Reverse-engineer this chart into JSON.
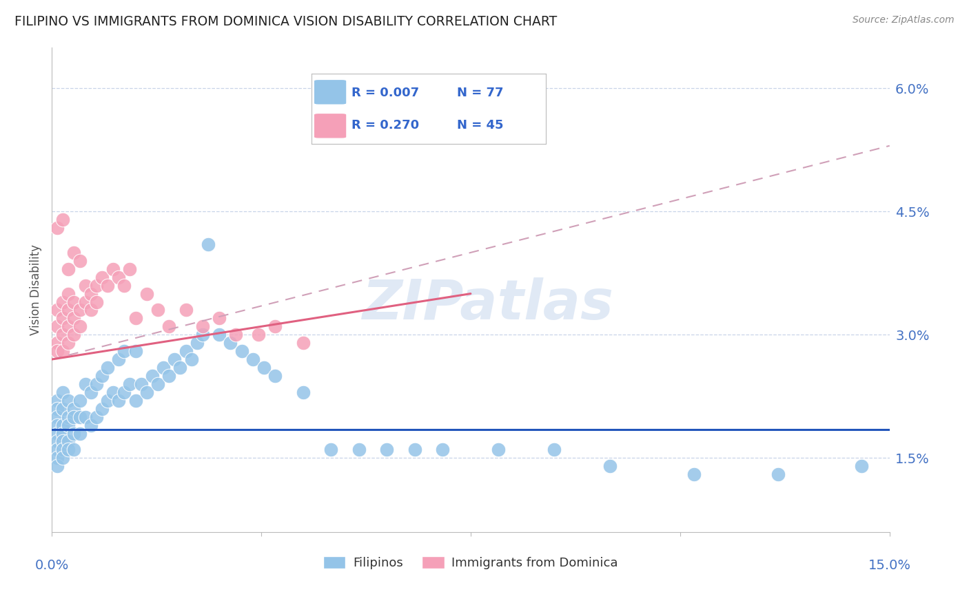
{
  "title": "FILIPINO VS IMMIGRANTS FROM DOMINICA VISION DISABILITY CORRELATION CHART",
  "source": "Source: ZipAtlas.com",
  "ylabel": "Vision Disability",
  "y_ticks": [
    0.015,
    0.03,
    0.045,
    0.06
  ],
  "y_tick_labels": [
    "1.5%",
    "3.0%",
    "4.5%",
    "6.0%"
  ],
  "x_min": 0.0,
  "x_max": 0.15,
  "y_min": 0.006,
  "y_max": 0.065,
  "watermark_text": "ZIPatlas",
  "filipino_color": "#94c4e8",
  "dominica_color": "#f5a0b8",
  "grid_color": "#c8d4e8",
  "axis_label_color": "#4472c4",
  "title_color": "#222222",
  "blue_trend_color": "#2255bb",
  "pink_trend_color": "#e06080",
  "dashed_trend_color": "#d0a0b8",
  "blue_trend_y": 0.0185,
  "pink_trend_x0": 0.0,
  "pink_trend_x1": 0.075,
  "pink_trend_y0": 0.027,
  "pink_trend_y1": 0.035,
  "dash_trend_x0": 0.0,
  "dash_trend_x1": 0.15,
  "dash_trend_y0": 0.027,
  "dash_trend_y1": 0.053,
  "legend_r1": "R = 0.007",
  "legend_n1": "N = 77",
  "legend_r2": "R = 0.270",
  "legend_n2": "N = 45",
  "legend_label1": "Filipinos",
  "legend_label2": "Immigrants from Dominica",
  "filipino_x": [
    0.001,
    0.001,
    0.001,
    0.001,
    0.001,
    0.001,
    0.001,
    0.001,
    0.001,
    0.002,
    0.002,
    0.002,
    0.002,
    0.002,
    0.002,
    0.002,
    0.003,
    0.003,
    0.003,
    0.003,
    0.003,
    0.004,
    0.004,
    0.004,
    0.004,
    0.005,
    0.005,
    0.005,
    0.006,
    0.006,
    0.007,
    0.007,
    0.008,
    0.008,
    0.009,
    0.009,
    0.01,
    0.01,
    0.011,
    0.012,
    0.012,
    0.013,
    0.013,
    0.014,
    0.015,
    0.015,
    0.016,
    0.017,
    0.018,
    0.019,
    0.02,
    0.021,
    0.022,
    0.023,
    0.024,
    0.025,
    0.026,
    0.027,
    0.028,
    0.03,
    0.032,
    0.034,
    0.036,
    0.038,
    0.04,
    0.045,
    0.05,
    0.055,
    0.06,
    0.065,
    0.07,
    0.08,
    0.09,
    0.1,
    0.115,
    0.13,
    0.145
  ],
  "filipino_y": [
    0.022,
    0.021,
    0.02,
    0.019,
    0.018,
    0.017,
    0.016,
    0.015,
    0.014,
    0.023,
    0.021,
    0.019,
    0.018,
    0.017,
    0.016,
    0.015,
    0.022,
    0.02,
    0.019,
    0.017,
    0.016,
    0.021,
    0.02,
    0.018,
    0.016,
    0.022,
    0.02,
    0.018,
    0.024,
    0.02,
    0.023,
    0.019,
    0.024,
    0.02,
    0.025,
    0.021,
    0.026,
    0.022,
    0.023,
    0.027,
    0.022,
    0.028,
    0.023,
    0.024,
    0.028,
    0.022,
    0.024,
    0.023,
    0.025,
    0.024,
    0.026,
    0.025,
    0.027,
    0.026,
    0.028,
    0.027,
    0.029,
    0.03,
    0.041,
    0.03,
    0.029,
    0.028,
    0.027,
    0.026,
    0.025,
    0.023,
    0.016,
    0.016,
    0.016,
    0.016,
    0.016,
    0.016,
    0.016,
    0.014,
    0.013,
    0.013,
    0.014
  ],
  "dominica_x": [
    0.001,
    0.001,
    0.001,
    0.001,
    0.002,
    0.002,
    0.002,
    0.002,
    0.003,
    0.003,
    0.003,
    0.003,
    0.004,
    0.004,
    0.004,
    0.005,
    0.005,
    0.006,
    0.006,
    0.007,
    0.007,
    0.008,
    0.008,
    0.009,
    0.01,
    0.011,
    0.012,
    0.013,
    0.014,
    0.015,
    0.017,
    0.019,
    0.021,
    0.024,
    0.027,
    0.03,
    0.033,
    0.037,
    0.04,
    0.045,
    0.001,
    0.002,
    0.003,
    0.004,
    0.005
  ],
  "dominica_y": [
    0.029,
    0.031,
    0.033,
    0.028,
    0.03,
    0.032,
    0.028,
    0.034,
    0.031,
    0.033,
    0.035,
    0.029,
    0.032,
    0.034,
    0.03,
    0.033,
    0.031,
    0.034,
    0.036,
    0.033,
    0.035,
    0.034,
    0.036,
    0.037,
    0.036,
    0.038,
    0.037,
    0.036,
    0.038,
    0.032,
    0.035,
    0.033,
    0.031,
    0.033,
    0.031,
    0.032,
    0.03,
    0.03,
    0.031,
    0.029,
    0.043,
    0.044,
    0.038,
    0.04,
    0.039
  ]
}
